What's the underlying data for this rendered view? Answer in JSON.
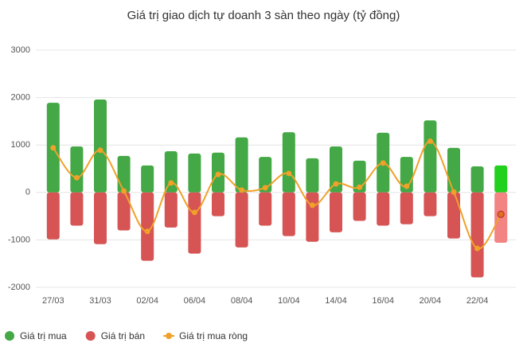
{
  "chart_data": {
    "type": "bar_line",
    "title": "Giá trị giao dịch tự doanh 3 sàn theo ngày (tỷ đồng)",
    "categories": [
      "27/03",
      null,
      "31/03",
      null,
      "02/04",
      null,
      "06/04",
      null,
      "08/04",
      null,
      "10/04",
      null,
      "14/04",
      null,
      "16/04",
      null,
      "20/04",
      null,
      "22/04",
      null
    ],
    "series": [
      {
        "name": "Giá trị mua",
        "type": "bar",
        "color": "#43a845",
        "colors": [
          "#43a845",
          "#43a845",
          "#43a845",
          "#43a845",
          "#43a845",
          "#43a845",
          "#43a845",
          "#43a845",
          "#43a845",
          "#43a845",
          "#43a845",
          "#43a845",
          "#43a845",
          "#43a845",
          "#43a845",
          "#43a845",
          "#43a845",
          "#43a845",
          "#43a845",
          "#22d01e"
        ],
        "values": [
          1890,
          970,
          1960,
          770,
          570,
          870,
          820,
          840,
          1160,
          750,
          1270,
          720,
          970,
          670,
          1260,
          750,
          1520,
          940,
          550,
          570
        ]
      },
      {
        "name": "Giá trị bán",
        "type": "bar",
        "color": "#d65454",
        "colors": [
          "#d65454",
          "#d65454",
          "#d65454",
          "#d65454",
          "#d65454",
          "#d65454",
          "#d65454",
          "#d65454",
          "#d65454",
          "#d65454",
          "#d65454",
          "#d65454",
          "#d65454",
          "#d65454",
          "#d65454",
          "#d65454",
          "#d65454",
          "#d65454",
          "#d65454",
          "#f28484"
        ],
        "values": [
          -990,
          -700,
          -1090,
          -800,
          -1440,
          -740,
          -1290,
          -500,
          -1160,
          -700,
          -920,
          -1040,
          -840,
          -600,
          -700,
          -670,
          -500,
          -970,
          -1790,
          -1060
        ]
      },
      {
        "name": "Giá trị mua ròng",
        "type": "line",
        "color": "#f0a12a",
        "values": [
          940,
          310,
          890,
          30,
          -820,
          200,
          -420,
          380,
          50,
          100,
          400,
          -270,
          180,
          110,
          620,
          130,
          1080,
          10,
          -1180,
          -460
        ]
      }
    ],
    "ylim": [
      -2000,
      3000
    ],
    "yticks": [
      -2000,
      -1000,
      0,
      1000,
      2000,
      3000
    ],
    "grid": true,
    "legend": "bottom"
  }
}
